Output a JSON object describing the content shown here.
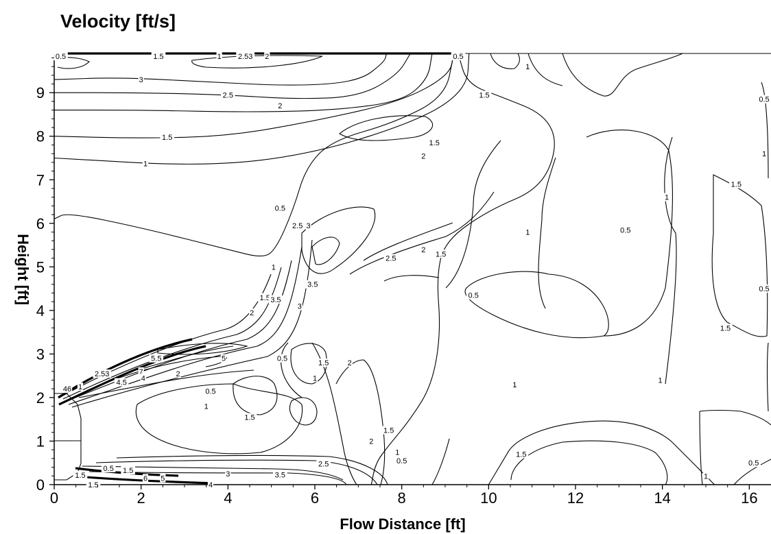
{
  "chart_data": {
    "type": "contour",
    "title": "Velocity [ft/s]",
    "xlabel": "Flow Distance [ft]",
    "ylabel": "Height [ft]",
    "xlim": [
      0,
      16.5
    ],
    "ylim": [
      0,
      9.9
    ],
    "xticks": [
      0,
      2,
      4,
      6,
      8,
      10,
      12,
      14,
      16
    ],
    "yticks": [
      0,
      1,
      2,
      3,
      4,
      5,
      6,
      7,
      8,
      9
    ],
    "grid": false,
    "contour_lines": [
      {
        "level": "3",
        "points": [
          [
            0.0,
            9.3
          ],
          [
            1.5,
            9.35
          ],
          [
            3.5,
            9.25
          ],
          [
            5.5,
            9.15
          ],
          [
            7.0,
            9.25
          ],
          [
            7.6,
            9.7
          ],
          [
            7.65,
            9.9
          ]
        ]
      },
      {
        "level": "2.5",
        "points": [
          [
            0.0,
            9.0
          ],
          [
            2.0,
            9.0
          ],
          [
            4.0,
            8.95
          ],
          [
            5.5,
            8.85
          ],
          [
            7.0,
            8.9
          ],
          [
            7.9,
            9.4
          ],
          [
            8.2,
            9.9
          ]
        ]
      },
      {
        "level": "2",
        "points": [
          [
            0.0,
            8.6
          ],
          [
            2.0,
            8.6
          ],
          [
            4.5,
            8.55
          ],
          [
            6.5,
            8.6
          ],
          [
            8.0,
            8.8
          ],
          [
            8.6,
            9.3
          ],
          [
            8.7,
            9.9
          ]
        ]
      },
      {
        "level": "1.5",
        "points": [
          [
            0.0,
            8.0
          ],
          [
            2.0,
            7.95
          ],
          [
            4.0,
            8.0
          ],
          [
            6.0,
            8.35
          ],
          [
            8.0,
            8.8
          ],
          [
            9.1,
            9.4
          ],
          [
            9.2,
            9.9
          ]
        ]
      },
      {
        "level": "1",
        "points": [
          [
            0.0,
            7.5
          ],
          [
            3.5,
            7.3
          ],
          [
            6.0,
            7.6
          ],
          [
            8.5,
            8.4
          ],
          [
            9.5,
            9.1
          ],
          [
            9.55,
            9.9
          ]
        ]
      },
      {
        "level": "0.5",
        "points": [
          [
            0.0,
            6.1
          ],
          [
            0.3,
            6.25
          ],
          [
            2.0,
            5.9
          ],
          [
            4.0,
            5.4
          ],
          [
            4.8,
            5.2
          ],
          [
            5.1,
            5.4
          ],
          [
            5.5,
            6.3
          ],
          [
            5.8,
            7.3
          ],
          [
            6.4,
            7.9
          ],
          [
            7.8,
            8.3
          ],
          [
            9.0,
            8.9
          ],
          [
            9.2,
            9.9
          ]
        ]
      },
      {
        "level": "1.5",
        "points": [
          [
            9.3,
            9.9
          ],
          [
            9.5,
            9.2
          ],
          [
            10.3,
            8.9
          ],
          [
            11.3,
            8.5
          ],
          [
            11.6,
            7.8
          ],
          [
            11.2,
            6.8
          ],
          [
            10.0,
            6.3
          ],
          [
            9.0,
            5.6
          ],
          [
            8.8,
            4.8
          ],
          [
            8.9,
            3.5
          ],
          [
            8.7,
            2.3
          ],
          [
            8.2,
            1.5
          ],
          [
            7.7,
            0.9
          ],
          [
            7.4,
            0.5
          ],
          [
            7.3,
            0.0
          ]
        ]
      },
      {
        "level": "1",
        "points": [
          [
            10.0,
            0.0
          ],
          [
            10.3,
            0.5
          ],
          [
            10.6,
            1.0
          ],
          [
            11.6,
            1.4
          ],
          [
            13.0,
            1.5
          ],
          [
            14.0,
            1.2
          ],
          [
            14.5,
            0.7
          ],
          [
            15.0,
            0.2
          ],
          [
            15.2,
            0.0
          ]
        ]
      }
    ],
    "labels": [
      {
        "text": "0.5",
        "x": 0.15,
        "y": 9.9
      },
      {
        "text": "1.5",
        "x": 2.4,
        "y": 9.9
      },
      {
        "text": "1",
        "x": 3.8,
        "y": 9.9
      },
      {
        "text": "2.53",
        "x": 4.4,
        "y": 9.9
      },
      {
        "text": "2",
        "x": 4.9,
        "y": 9.9
      },
      {
        "text": "0.5",
        "x": 9.3,
        "y": 9.9
      },
      {
        "text": "3",
        "x": 2.0,
        "y": 9.3
      },
      {
        "text": "2.5",
        "x": 4.0,
        "y": 8.95
      },
      {
        "text": "2",
        "x": 5.2,
        "y": 8.7
      },
      {
        "text": "1.5",
        "x": 2.6,
        "y": 7.98
      },
      {
        "text": "1",
        "x": 2.1,
        "y": 7.37
      },
      {
        "text": "0.5",
        "x": 5.2,
        "y": 6.35
      },
      {
        "text": "1.5",
        "x": 9.9,
        "y": 8.95
      },
      {
        "text": "1",
        "x": 10.9,
        "y": 9.6
      },
      {
        "text": "1.5",
        "x": 8.75,
        "y": 7.85
      },
      {
        "text": "2",
        "x": 8.5,
        "y": 7.55
      },
      {
        "text": "2.5",
        "x": 5.6,
        "y": 5.95
      },
      {
        "text": "3",
        "x": 5.85,
        "y": 5.95
      },
      {
        "text": "1",
        "x": 5.05,
        "y": 5.0
      },
      {
        "text": "3.5",
        "x": 5.95,
        "y": 4.6
      },
      {
        "text": "2.5",
        "x": 7.75,
        "y": 5.2
      },
      {
        "text": "2",
        "x": 8.5,
        "y": 5.4
      },
      {
        "text": "1.5",
        "x": 8.9,
        "y": 5.3
      },
      {
        "text": "1",
        "x": 10.9,
        "y": 5.8
      },
      {
        "text": "0.5",
        "x": 13.15,
        "y": 5.85
      },
      {
        "text": "1",
        "x": 14.1,
        "y": 6.6
      },
      {
        "text": "1.5",
        "x": 15.7,
        "y": 6.9
      },
      {
        "text": "1",
        "x": 16.35,
        "y": 7.6
      },
      {
        "text": "0.5",
        "x": 16.4,
        "y": 8.85
      },
      {
        "text": "0.5",
        "x": 16.4,
        "y": 4.5
      },
      {
        "text": "0.5",
        "x": 9.65,
        "y": 4.35
      },
      {
        "text": "1.5",
        "x": 4.85,
        "y": 4.3
      },
      {
        "text": "3.5",
        "x": 5.1,
        "y": 4.25
      },
      {
        "text": "3",
        "x": 5.65,
        "y": 4.1
      },
      {
        "text": "2",
        "x": 4.55,
        "y": 3.95
      },
      {
        "text": "1.5",
        "x": 15.45,
        "y": 3.6
      },
      {
        "text": "5.5",
        "x": 2.35,
        "y": 2.9
      },
      {
        "text": "5",
        "x": 3.9,
        "y": 2.9
      },
      {
        "text": "0.5",
        "x": 5.25,
        "y": 2.9
      },
      {
        "text": "1.5",
        "x": 6.2,
        "y": 2.8
      },
      {
        "text": "2",
        "x": 6.8,
        "y": 2.8
      },
      {
        "text": "2.53",
        "x": 1.1,
        "y": 2.55
      },
      {
        "text": "46",
        "x": 0.3,
        "y": 2.2
      },
      {
        "text": "1",
        "x": 0.6,
        "y": 2.25
      },
      {
        "text": "7",
        "x": 2.0,
        "y": 2.6
      },
      {
        "text": "4",
        "x": 2.05,
        "y": 2.45
      },
      {
        "text": "4.5",
        "x": 1.55,
        "y": 2.35
      },
      {
        "text": "2",
        "x": 2.85,
        "y": 2.55
      },
      {
        "text": "0.5",
        "x": 3.6,
        "y": 2.15
      },
      {
        "text": "1",
        "x": 6.0,
        "y": 2.45
      },
      {
        "text": "1",
        "x": 3.5,
        "y": 1.8
      },
      {
        "text": "1.5",
        "x": 4.5,
        "y": 1.55
      },
      {
        "text": "1",
        "x": 10.6,
        "y": 2.3
      },
      {
        "text": "1",
        "x": 13.95,
        "y": 2.4
      },
      {
        "text": "1.5",
        "x": 7.7,
        "y": 1.25
      },
      {
        "text": "2",
        "x": 7.3,
        "y": 1.0
      },
      {
        "text": "1",
        "x": 7.9,
        "y": 0.75
      },
      {
        "text": "0.5",
        "x": 8.0,
        "y": 0.55
      },
      {
        "text": "1.5",
        "x": 10.75,
        "y": 0.7
      },
      {
        "text": "0.5",
        "x": 16.1,
        "y": 0.5
      },
      {
        "text": "1",
        "x": 15.0,
        "y": 0.2
      },
      {
        "text": "2.5",
        "x": 6.2,
        "y": 0.48
      },
      {
        "text": "0.5",
        "x": 1.25,
        "y": 0.38
      },
      {
        "text": "1.5",
        "x": 1.7,
        "y": 0.33
      },
      {
        "text": "3",
        "x": 4.0,
        "y": 0.25
      },
      {
        "text": "3.5",
        "x": 5.2,
        "y": 0.23
      },
      {
        "text": "1.5",
        "x": 0.6,
        "y": 0.22
      },
      {
        "text": "6",
        "x": 2.1,
        "y": 0.15
      },
      {
        "text": "5",
        "x": 2.5,
        "y": 0.15
      },
      {
        "text": "4",
        "x": 3.6,
        "y": 0.0
      },
      {
        "text": "1.5",
        "x": 0.9,
        "y": 0.0
      }
    ]
  }
}
